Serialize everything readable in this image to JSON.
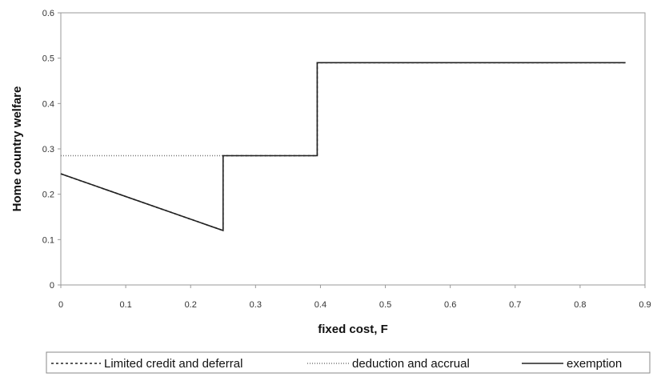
{
  "chart_data": {
    "type": "line",
    "title": "",
    "xlabel": "fixed cost, F",
    "ylabel": "Home country welfare",
    "xlim": [
      0,
      0.9
    ],
    "ylim": [
      0,
      0.6
    ],
    "x_ticks": [
      "0",
      "0.1",
      "0.2",
      "0.3",
      "0.4",
      "0.5",
      "0.6",
      "0.7",
      "0.8",
      "0.9"
    ],
    "y_ticks": [
      "0",
      "0.1",
      "0.2",
      "0.3",
      "0.4",
      "0.5",
      "0.6"
    ],
    "grid": false,
    "legend_position": "bottom",
    "series": [
      {
        "name": "Limited credit and deferral",
        "style": "dashed",
        "color": "#222222",
        "points": [
          [
            0,
            0.245
          ],
          [
            0.25,
            0.12
          ],
          [
            0.25,
            0.285
          ],
          [
            0.395,
            0.285
          ],
          [
            0.395,
            0.49
          ],
          [
            0.87,
            0.49
          ]
        ]
      },
      {
        "name": "deduction and accrual",
        "style": "dotted",
        "color": "#777777",
        "points": [
          [
            0,
            0.285
          ],
          [
            0.25,
            0.285
          ],
          [
            0.395,
            0.285
          ],
          [
            0.395,
            0.49
          ],
          [
            0.87,
            0.49
          ]
        ]
      },
      {
        "name": "exemption",
        "style": "solid",
        "color": "#222222",
        "points": [
          [
            0,
            0.245
          ],
          [
            0.25,
            0.12
          ],
          [
            0.25,
            0.285
          ],
          [
            0.395,
            0.285
          ],
          [
            0.395,
            0.49
          ],
          [
            0.87,
            0.49
          ]
        ]
      }
    ]
  }
}
